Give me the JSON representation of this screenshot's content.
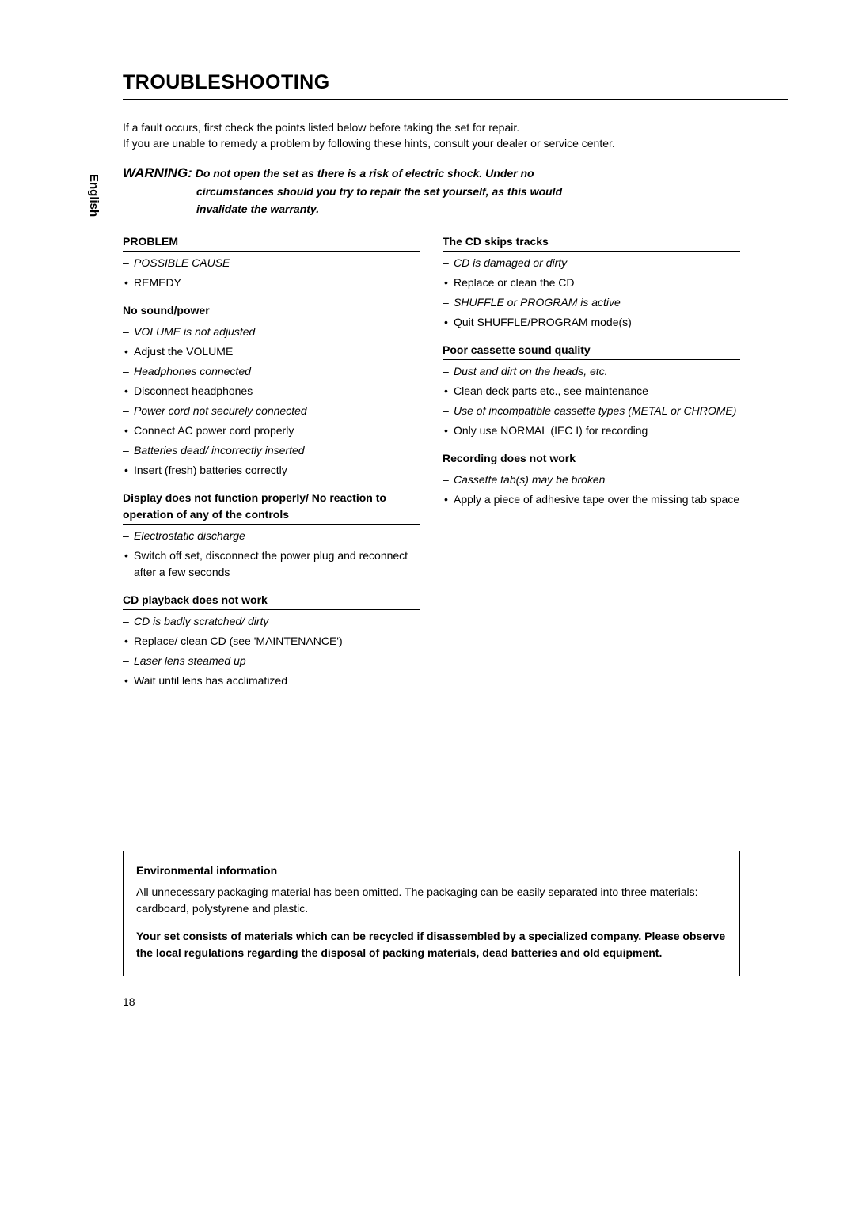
{
  "sideLabel": "English",
  "title": "TROUBLESHOOTING",
  "intro1": "If a fault occurs, first check the points listed below before taking the set for repair.",
  "intro2": "If you are unable to remedy a problem by following these hints, consult your dealer or service center.",
  "warning": {
    "lead": "WARNING:",
    "l1": " Do not open the set as there is a risk of electric shock. Under no",
    "l2": "circumstances should you try to repair the set yourself, as this would",
    "l3": "invalidate the warranty."
  },
  "left": {
    "problem": "PROBLEM",
    "possibleCause": "POSSIBLE CAUSE",
    "remedy": "REMEDY",
    "noSound": {
      "head": "No sound/power",
      "c1": "VOLUME is not adjusted",
      "r1": "Adjust the VOLUME",
      "c2": "Headphones connected",
      "r2": "Disconnect headphones",
      "c3": "Power cord not securely connected",
      "r3": "Connect AC power cord properly",
      "c4": "Batteries dead/ incorrectly inserted",
      "r4": "Insert (fresh) batteries correctly"
    },
    "display": {
      "head": "Display does not function properly/ No reaction to operation of any of the controls",
      "c1": "Electrostatic discharge",
      "r1": "Switch off set, disconnect the power plug and reconnect after a few seconds"
    },
    "cdPlayback": {
      "head": "CD playback does not work",
      "c1": "CD is badly scratched/ dirty",
      "r1": "Replace/ clean CD (see 'MAINTENANCE')",
      "c2": "Laser lens steamed up",
      "r2": "Wait until lens has acclimatized"
    }
  },
  "right": {
    "cdSkips": {
      "head": "The CD skips tracks",
      "c1": "CD is damaged or dirty",
      "r1": "Replace or clean the CD",
      "c2": "SHUFFLE or PROGRAM is active",
      "r2": "Quit SHUFFLE/PROGRAM mode(s)"
    },
    "cassette": {
      "head": "Poor cassette sound quality",
      "c1": "Dust and dirt on the heads, etc.",
      "r1": "Clean deck parts etc., see maintenance",
      "c2": "Use of incompatible cassette types (METAL or CHROME)",
      "r2": "Only use NORMAL (IEC I) for recording"
    },
    "recording": {
      "head": "Recording does not work",
      "c1": "Cassette tab(s) may be broken",
      "r1": "Apply a piece of adhesive tape over the missing tab space"
    }
  },
  "env": {
    "title": "Environmental information",
    "p1": "All unnecessary packaging material has been omitted. The packaging can be easily separated into three materials: cardboard, polystyrene and plastic.",
    "p2": "Your set consists of materials which can be recycled if disassembled by a specialized company. Please observe the local regulations regarding the disposal of packing materials, dead batteries and old equipment."
  },
  "pageNumber": "18"
}
